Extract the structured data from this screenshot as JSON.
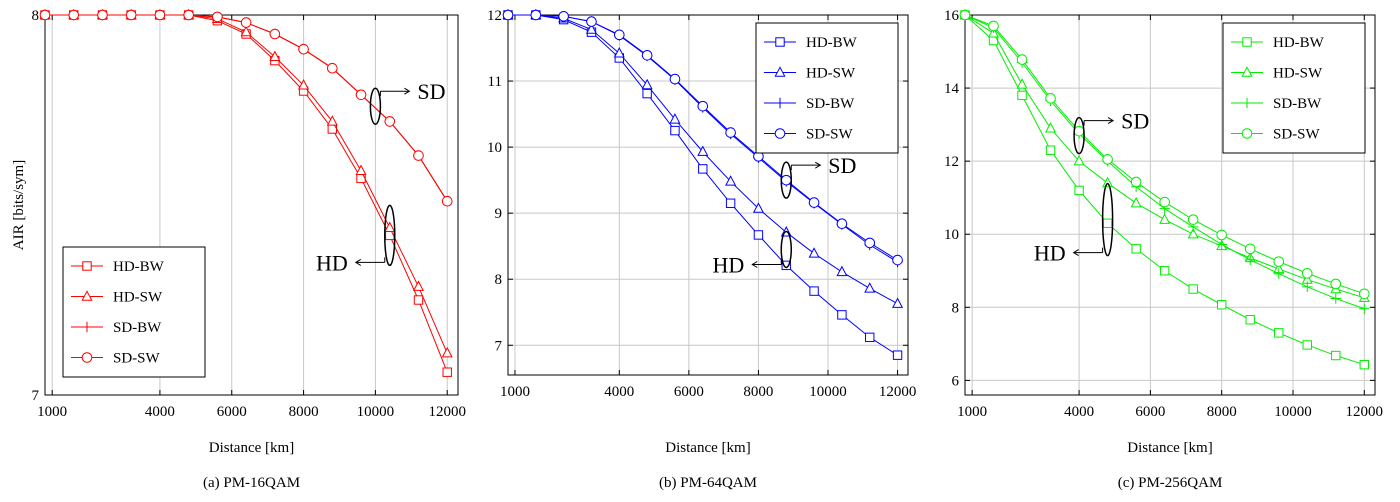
{
  "ylabel_shared": "AIR [bits/sym]",
  "chart_data": [
    {
      "type": "line",
      "caption": "(a) PM-16QAM",
      "xlabel": "Distance [km]",
      "ylabel": "AIR [bits/sym]",
      "color": "#ff0000",
      "xlim": [
        800,
        12300
      ],
      "ylim": [
        7,
        8
      ],
      "xticks": [
        1000,
        4000,
        6000,
        8000,
        10000,
        12000
      ],
      "yticks": [
        7,
        8
      ],
      "grid": true,
      "legend_position": "bottom-left",
      "series": [
        {
          "name": "HD-BW",
          "marker": "square",
          "x": [
            800,
            1600,
            2400,
            3200,
            4000,
            4800,
            5600,
            6400,
            7200,
            8000,
            8800,
            9600,
            10400,
            11200,
            12000
          ],
          "y": [
            8.0,
            8.0,
            8.0,
            8.0,
            8.0,
            8.0,
            7.985,
            7.95,
            7.88,
            7.8,
            7.7,
            7.57,
            7.42,
            7.25,
            7.06
          ]
        },
        {
          "name": "HD-SW",
          "marker": "triangle",
          "x": [
            800,
            1600,
            2400,
            3200,
            4000,
            4800,
            5600,
            6400,
            7200,
            8000,
            8800,
            9600,
            10400,
            11200,
            12000
          ],
          "y": [
            8.0,
            8.0,
            8.0,
            8.0,
            8.0,
            8.0,
            7.99,
            7.955,
            7.89,
            7.815,
            7.72,
            7.59,
            7.44,
            7.285,
            7.11
          ]
        },
        {
          "name": "SD-BW",
          "marker": "plus",
          "x": [
            800,
            1600,
            2400,
            3200,
            4000,
            4800,
            5600,
            6400,
            7200,
            8000,
            8800,
            9600,
            10400,
            11200,
            12000
          ],
          "y": [
            8.0,
            8.0,
            8.0,
            8.0,
            8.0,
            8.0,
            7.995,
            7.98,
            7.95,
            7.91,
            7.86,
            7.79,
            7.72,
            7.63,
            7.51
          ]
        },
        {
          "name": "SD-SW",
          "marker": "circle",
          "x": [
            800,
            1600,
            2400,
            3200,
            4000,
            4800,
            5600,
            6400,
            7200,
            8000,
            8800,
            9600,
            10400,
            11200,
            12000
          ],
          "y": [
            8.0,
            8.0,
            8.0,
            8.0,
            8.0,
            8.0,
            7.995,
            7.98,
            7.95,
            7.91,
            7.86,
            7.79,
            7.72,
            7.63,
            7.51
          ]
        }
      ],
      "annotations": [
        {
          "text": "SD",
          "x": 10000,
          "y": 7.76,
          "direction": "right"
        },
        {
          "text": "HD",
          "x": 10400,
          "y": 7.42,
          "direction": "left"
        }
      ]
    },
    {
      "type": "line",
      "caption": "(b) PM-64QAM",
      "xlabel": "Distance [km]",
      "ylabel": "",
      "color": "#0000ff",
      "xlim": [
        800,
        12300
      ],
      "ylim": [
        6.55,
        12
      ],
      "xticks": [
        1000,
        4000,
        6000,
        8000,
        10000,
        12000
      ],
      "yticks": [
        7,
        8,
        9,
        10,
        11,
        12
      ],
      "grid": true,
      "legend_position": "top-right",
      "series": [
        {
          "name": "HD-BW",
          "marker": "square",
          "x": [
            800,
            1600,
            2400,
            3200,
            4000,
            4800,
            5600,
            6400,
            7200,
            8000,
            8800,
            9600,
            10400,
            11200,
            12000
          ],
          "y": [
            12.0,
            12.0,
            11.93,
            11.74,
            11.35,
            10.81,
            10.25,
            9.67,
            9.15,
            8.67,
            8.21,
            7.82,
            7.46,
            7.12,
            6.85
          ]
        },
        {
          "name": "HD-SW",
          "marker": "triangle",
          "x": [
            800,
            1600,
            2400,
            3200,
            4000,
            4800,
            5600,
            6400,
            7200,
            8000,
            8800,
            9600,
            10400,
            11200,
            12000
          ],
          "y": [
            12.0,
            12.0,
            11.95,
            11.78,
            11.42,
            10.94,
            10.42,
            9.93,
            9.48,
            9.07,
            8.71,
            8.39,
            8.11,
            7.86,
            7.63
          ]
        },
        {
          "name": "SD-BW",
          "marker": "plus",
          "x": [
            800,
            1600,
            2400,
            3200,
            4000,
            4800,
            5600,
            6400,
            7200,
            8000,
            8800,
            9600,
            10400,
            11200,
            12000
          ],
          "y": [
            12.0,
            12.0,
            11.98,
            11.9,
            11.69,
            11.38,
            11.02,
            10.6,
            10.2,
            9.84,
            9.48,
            9.15,
            8.83,
            8.52,
            8.26
          ]
        },
        {
          "name": "SD-SW",
          "marker": "circle",
          "x": [
            800,
            1600,
            2400,
            3200,
            4000,
            4800,
            5600,
            6400,
            7200,
            8000,
            8800,
            9600,
            10400,
            11200,
            12000
          ],
          "y": [
            12.0,
            12.0,
            11.98,
            11.9,
            11.7,
            11.39,
            11.03,
            10.62,
            10.22,
            9.86,
            9.5,
            9.16,
            8.84,
            8.55,
            8.29
          ]
        }
      ],
      "annotations": [
        {
          "text": "SD",
          "x": 8800,
          "y": 9.5,
          "direction": "right"
        },
        {
          "text": "HD",
          "x": 8800,
          "y": 8.45,
          "direction": "left"
        }
      ]
    },
    {
      "type": "line",
      "caption": "(c) PM-256QAM",
      "xlabel": "Distance [km]",
      "ylabel": "",
      "color": "#00ee00",
      "xlim": [
        800,
        12300
      ],
      "ylim": [
        5.6,
        16
      ],
      "xticks": [
        1000,
        4000,
        6000,
        8000,
        10000,
        12000
      ],
      "yticks": [
        6,
        8,
        10,
        12,
        14,
        16
      ],
      "grid": true,
      "legend_position": "top-right",
      "series": [
        {
          "name": "HD-BW",
          "marker": "square",
          "x": [
            800,
            1600,
            2400,
            3200,
            4000,
            4800,
            5600,
            6400,
            7200,
            8000,
            8800,
            9600,
            10400,
            11200,
            12000
          ],
          "y": [
            16.0,
            15.3,
            13.8,
            12.3,
            11.2,
            10.3,
            9.6,
            9.0,
            8.5,
            8.07,
            7.66,
            7.3,
            6.97,
            6.68,
            6.43
          ]
        },
        {
          "name": "HD-SW",
          "marker": "triangle",
          "x": [
            800,
            1600,
            2400,
            3200,
            4000,
            4800,
            5600,
            6400,
            7200,
            8000,
            8800,
            9600,
            10400,
            11200,
            12000
          ],
          "y": [
            16.0,
            15.5,
            14.1,
            12.9,
            12.0,
            11.4,
            10.85,
            10.4,
            10.0,
            9.68,
            9.35,
            9.05,
            8.76,
            8.5,
            8.26
          ]
        },
        {
          "name": "SD-BW",
          "marker": "plus",
          "x": [
            800,
            1600,
            2400,
            3200,
            4000,
            4800,
            5600,
            6400,
            7200,
            8000,
            8800,
            9600,
            10400,
            11200,
            12000
          ],
          "y": [
            16.0,
            15.65,
            14.7,
            13.65,
            12.75,
            12.0,
            11.3,
            10.7,
            10.2,
            9.72,
            9.3,
            8.92,
            8.56,
            8.24,
            7.96
          ]
        },
        {
          "name": "SD-SW",
          "marker": "circle",
          "x": [
            800,
            1600,
            2400,
            3200,
            4000,
            4800,
            5600,
            6400,
            7200,
            8000,
            8800,
            9600,
            10400,
            11200,
            12000
          ],
          "y": [
            16.0,
            15.7,
            14.78,
            13.72,
            12.82,
            12.05,
            11.43,
            10.88,
            10.4,
            9.98,
            9.6,
            9.25,
            8.93,
            8.64,
            8.37
          ]
        }
      ],
      "annotations": [
        {
          "text": "SD",
          "x": 4000,
          "y": 12.7,
          "direction": "right"
        },
        {
          "text": "HD",
          "x": 4800,
          "y": 10.4,
          "direction": "left"
        }
      ]
    }
  ]
}
